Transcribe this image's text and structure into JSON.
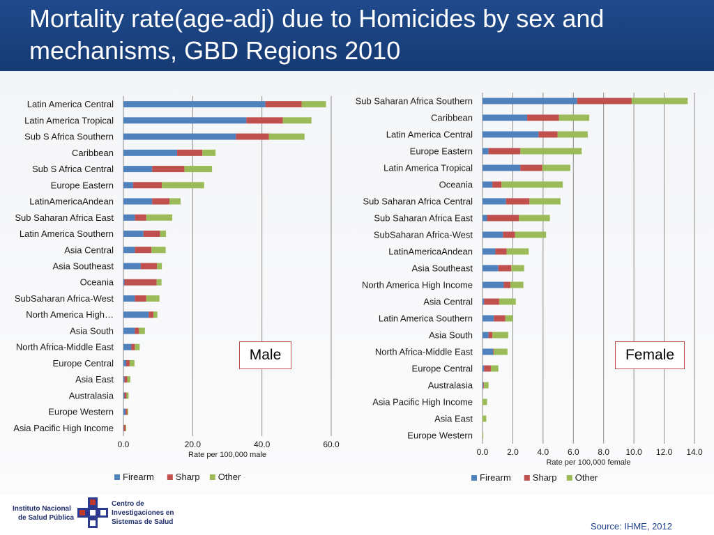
{
  "title": "Mortality rate(age-adj) due to Homicides by sex and mechanisms, GBD Regions 2010",
  "colors": {
    "firearm": "#4f81bd",
    "sharp": "#c0504d",
    "other": "#9bbb59"
  },
  "legend": [
    "Firearm",
    "Sharp",
    "Other"
  ],
  "source": "Source: IHME, 2012",
  "logo": {
    "insp_line1": "Instituto Nacional",
    "insp_line2": "de Salud Pública",
    "ci_line1": "Centro de",
    "ci_line2": "Investigaciones en",
    "ci_line3": "Sistemas de Salud"
  },
  "chart_data": [
    {
      "type": "bar",
      "orientation": "horizontal",
      "stacked": true,
      "box_label": "Male",
      "xlabel": "Rate per 100,000 male",
      "xlim": [
        0,
        60
      ],
      "xticks": [
        0,
        20,
        40,
        60
      ],
      "tick_labels": [
        "0.0",
        "20.0",
        "40.0",
        "60.0"
      ],
      "legend_position": "bottom-left",
      "categories": [
        "Latin America Central",
        "Latin America Tropical",
        "Sub S Africa Southern",
        "Caribbean",
        "Sub S Africa Central",
        "Europe Eastern",
        "LatinAmericaAndean",
        "Sub Saharan Africa East",
        "Latin America Southern",
        "Asia Central",
        "Asia Southeast",
        "Oceania",
        "SubSaharan Africa-West",
        "North America High…",
        "Asia South",
        "North Africa-Middle East",
        "Europe Central",
        "Asia East",
        "Australasia",
        "Europe Western",
        "Asia Pacific High Income"
      ],
      "series": [
        {
          "name": "Firearm",
          "values": [
            41,
            35.5,
            32.5,
            15.5,
            8.3,
            2.8,
            8.3,
            3.3,
            5.8,
            3.3,
            5.0,
            0.3,
            3.3,
            7.3,
            3.3,
            2.3,
            0.8,
            0.3,
            0.3,
            0.6,
            0.1
          ]
        },
        {
          "name": "Sharp",
          "values": [
            10.5,
            10.5,
            9.5,
            7.3,
            9.3,
            8.3,
            5.0,
            3.3,
            4.8,
            4.8,
            4.7,
            9.3,
            3.3,
            1.4,
            1.2,
            1.0,
            1.0,
            0.8,
            0.6,
            0.5,
            0.5
          ]
        },
        {
          "name": "Other",
          "values": [
            7.0,
            8.3,
            10.3,
            3.8,
            8.0,
            12.2,
            3.2,
            7.5,
            1.7,
            4.1,
            1.4,
            1.4,
            3.8,
            1.1,
            1.7,
            1.4,
            1.4,
            0.9,
            0.6,
            0.3,
            0.2
          ]
        }
      ]
    },
    {
      "type": "bar",
      "orientation": "horizontal",
      "stacked": true,
      "box_label": "Female",
      "xlabel": "Rate per 100,000 female",
      "xlim": [
        0,
        14
      ],
      "xticks": [
        0,
        2,
        4,
        6,
        8,
        10,
        12,
        14
      ],
      "tick_labels": [
        "0.0",
        "2.0",
        "4.0",
        "6.0",
        "8.0",
        "10.0",
        "12.0",
        "14.0"
      ],
      "legend_position": "bottom-left",
      "categories": [
        "Sub Saharan Africa Southern",
        "Caribbean",
        "Latin America Central",
        "Europe Eastern",
        "Latin America Tropical",
        "Oceania",
        "Sub Saharan Africa Central",
        "Sub Saharan Africa East",
        "SubSaharan Africa-West",
        "LatinAmericaAndean",
        "Asia Southeast",
        "North America High Income",
        "Asia Central",
        "Latin America Southern",
        "Asia South",
        "North Africa-Middle East",
        "Europe Central",
        "Australasia",
        "Asia Pacific High Income",
        "Asia East",
        "Europe Western"
      ],
      "series": [
        {
          "name": "Firearm",
          "values": [
            6.25,
            2.95,
            3.7,
            0.4,
            2.5,
            0.65,
            1.55,
            0.3,
            1.35,
            0.85,
            1.05,
            1.4,
            0.1,
            0.75,
            0.4,
            0.7,
            0.1,
            0.05,
            0.0,
            0.0,
            0.0
          ]
        },
        {
          "name": "Sharp",
          "values": [
            3.6,
            2.1,
            1.25,
            2.1,
            1.45,
            0.6,
            1.55,
            2.1,
            0.8,
            0.75,
            0.85,
            0.45,
            1.0,
            0.75,
            0.25,
            0.05,
            0.45,
            0.05,
            0.0,
            0.0,
            0.0
          ]
        },
        {
          "name": "Other",
          "values": [
            3.7,
            2.0,
            2.0,
            4.05,
            1.85,
            4.05,
            2.05,
            2.05,
            2.05,
            1.45,
            0.85,
            0.85,
            1.1,
            0.5,
            1.05,
            0.9,
            0.5,
            0.3,
            0.3,
            0.25,
            0.05
          ]
        }
      ]
    }
  ]
}
